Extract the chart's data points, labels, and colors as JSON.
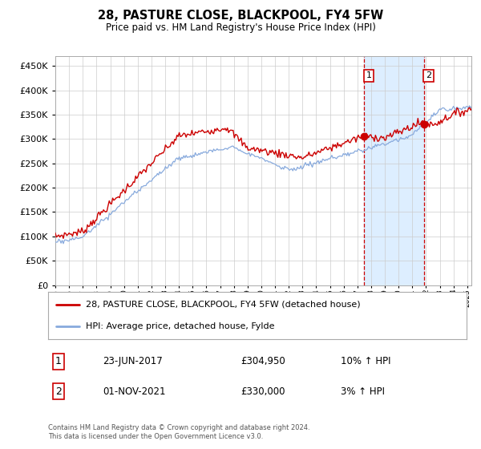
{
  "title": "28, PASTURE CLOSE, BLACKPOOL, FY4 5FW",
  "subtitle": "Price paid vs. HM Land Registry's House Price Index (HPI)",
  "legend_line1": "28, PASTURE CLOSE, BLACKPOOL, FY4 5FW (detached house)",
  "legend_line2": "HPI: Average price, detached house, Fylde",
  "ann1_date": "23-JUN-2017",
  "ann1_price": "£304,950",
  "ann1_hpi": "10% ↑ HPI",
  "ann2_date": "01-NOV-2021",
  "ann2_price": "£330,000",
  "ann2_hpi": "3% ↑ HPI",
  "footer": "Contains HM Land Registry data © Crown copyright and database right 2024.\nThis data is licensed under the Open Government Licence v3.0.",
  "line_color_red": "#cc0000",
  "line_color_blue": "#88aadd",
  "vline_color": "#cc0000",
  "highlight_color": "#ddeeff",
  "grid_color": "#cccccc",
  "bg_color": "#ffffff",
  "ylim": [
    0,
    470000
  ],
  "yticks": [
    0,
    50000,
    100000,
    150000,
    200000,
    250000,
    300000,
    350000,
    400000,
    450000
  ],
  "xlim_start": 1995.0,
  "xlim_end": 2025.3,
  "sale1_x": 2017.47,
  "sale1_y": 304950,
  "sale2_x": 2021.83,
  "sale2_y": 330000,
  "xtick_years": [
    1995,
    1996,
    1997,
    1998,
    1999,
    2000,
    2001,
    2002,
    2003,
    2004,
    2005,
    2006,
    2007,
    2008,
    2009,
    2010,
    2011,
    2012,
    2013,
    2014,
    2015,
    2016,
    2017,
    2018,
    2019,
    2020,
    2021,
    2022,
    2023,
    2024,
    2025
  ]
}
